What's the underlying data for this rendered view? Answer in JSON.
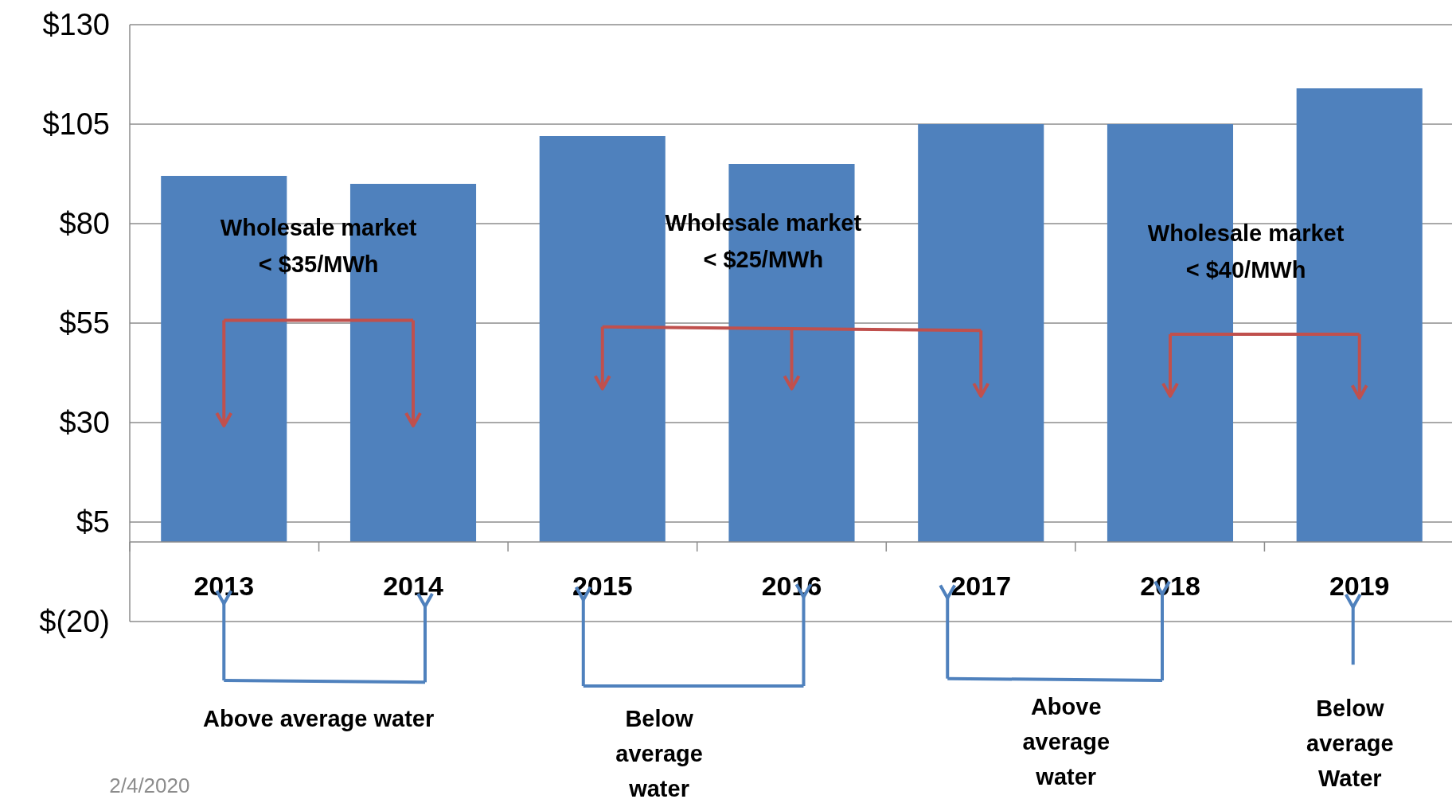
{
  "chart_data": {
    "type": "bar",
    "categories": [
      "2013",
      "2014",
      "2015",
      "2016",
      "2017",
      "2018",
      "2019"
    ],
    "values": [
      92,
      90,
      102,
      95,
      105,
      105,
      114
    ],
    "color": "#4f81bd",
    "ylim": [
      -20,
      130
    ],
    "yticks": [
      {
        "value": -20,
        "label": "$(20)"
      },
      {
        "value": 5,
        "label": "$5"
      },
      {
        "value": 30,
        "label": "$30"
      },
      {
        "value": 55,
        "label": "$55"
      },
      {
        "value": 80,
        "label": "$80"
      },
      {
        "value": 105,
        "label": "$105"
      },
      {
        "value": 130,
        "label": "$130"
      }
    ],
    "grid": "y",
    "annotations": [
      "Wholesale market < $35/MWh",
      "Wholesale market < $25/MWh",
      "Wholesale market < $40/MWh",
      "Above average water",
      "Below average water",
      "Above average water",
      "Below average Water",
      "2/4/2020"
    ]
  }
}
